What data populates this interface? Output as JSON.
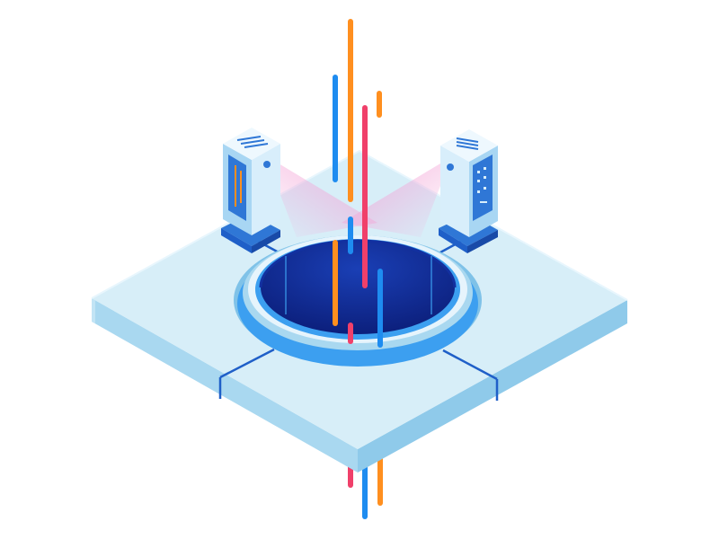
{
  "illustration": {
    "colors": {
      "platform_top": "#d7eef8",
      "platform_edge": "#a9d8f0",
      "platform_shadow": "#7fc2e8",
      "seam": "#1f5fc8",
      "hole_rim": "#3c9ff0",
      "hole_inner": "#1230a0",
      "hole_deep": "#0b1d78",
      "server_light": "#d8eefb",
      "server_mid": "#a8d6f3",
      "server_dark": "#2f77d6",
      "beam": "#f3a8d8",
      "line_orange": "#ff8f1f",
      "line_blue": "#1e8cf0",
      "line_pink": "#f0406a",
      "line_navy": "#1f4fd0"
    },
    "objects": [
      "isometric-platform",
      "portal-hole",
      "server-left",
      "server-right",
      "data-streams"
    ]
  }
}
